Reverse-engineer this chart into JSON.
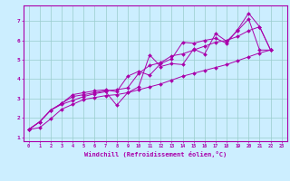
{
  "title": "",
  "xlabel": "Windchill (Refroidissement éolien,°C)",
  "bg_color": "#cceeff",
  "grid_color": "#99cccc",
  "line_color": "#aa00aa",
  "xlim": [
    -0.5,
    23.5
  ],
  "ylim": [
    0.8,
    7.8
  ],
  "xticks": [
    0,
    1,
    2,
    3,
    4,
    5,
    6,
    7,
    8,
    9,
    10,
    11,
    12,
    13,
    14,
    15,
    16,
    17,
    18,
    19,
    20,
    21,
    22,
    23
  ],
  "yticks": [
    1,
    2,
    3,
    4,
    5,
    6,
    7
  ],
  "series_x": [
    [
      0,
      1,
      2,
      3,
      4,
      5,
      6,
      7,
      8,
      9,
      10,
      11,
      12,
      13,
      14,
      15,
      16,
      17,
      18,
      19,
      20,
      21,
      22
    ],
    [
      0,
      1,
      2,
      3,
      4,
      5,
      6,
      7,
      8,
      9,
      10,
      11,
      12,
      13,
      14,
      15,
      16,
      17,
      18,
      19,
      20,
      21,
      22
    ],
    [
      0,
      1,
      2,
      3,
      4,
      5,
      6,
      7,
      8,
      9,
      10,
      11,
      12,
      13,
      14,
      15,
      16,
      17,
      18,
      19,
      20,
      21,
      22
    ],
    [
      0,
      1,
      2,
      3,
      4,
      5,
      6,
      7,
      8,
      9,
      10,
      11,
      12,
      13,
      14,
      15,
      16,
      17,
      18,
      19,
      20,
      21,
      22
    ]
  ],
  "series_y": [
    [
      1.4,
      1.8,
      2.4,
      2.7,
      2.9,
      3.1,
      3.25,
      3.35,
      2.65,
      3.3,
      3.6,
      5.25,
      4.65,
      4.8,
      4.75,
      5.55,
      5.3,
      6.35,
      5.95,
      6.5,
      7.1,
      5.5,
      5.5
    ],
    [
      1.4,
      1.8,
      2.4,
      2.75,
      3.2,
      3.3,
      3.4,
      3.45,
      3.35,
      4.15,
      4.4,
      4.2,
      4.8,
      5.05,
      5.9,
      5.85,
      6.0,
      6.1,
      5.85,
      6.55,
      7.4,
      6.7,
      5.5
    ],
    [
      1.4,
      1.8,
      2.4,
      2.75,
      3.1,
      3.2,
      3.3,
      3.4,
      3.45,
      3.55,
      4.3,
      4.7,
      4.85,
      5.2,
      5.3,
      5.5,
      5.7,
      5.9,
      6.0,
      6.2,
      6.5,
      6.7,
      5.5
    ],
    [
      1.4,
      1.5,
      1.95,
      2.45,
      2.7,
      2.95,
      3.05,
      3.15,
      3.2,
      3.3,
      3.45,
      3.6,
      3.75,
      3.95,
      4.15,
      4.3,
      4.45,
      4.6,
      4.75,
      4.95,
      5.15,
      5.35,
      5.5
    ]
  ]
}
